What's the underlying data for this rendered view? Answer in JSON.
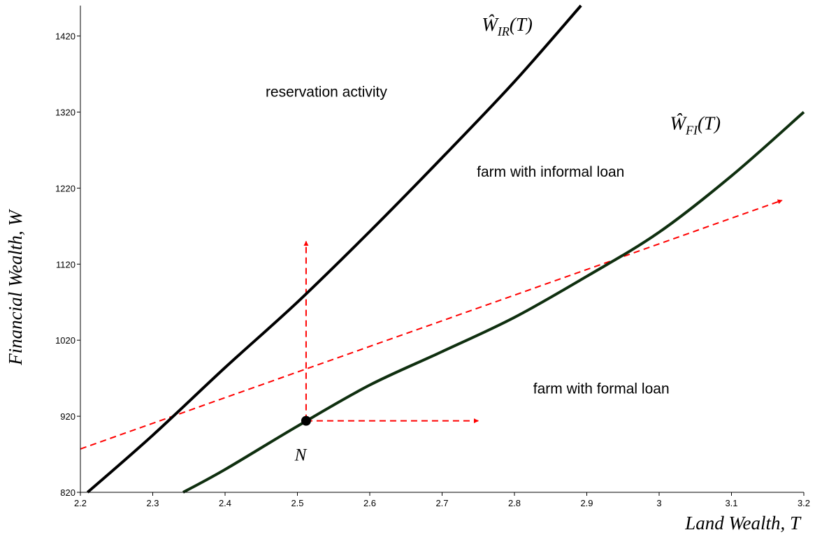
{
  "chart_data": {
    "type": "line",
    "title": "",
    "xlabel": "Land Wealth, T",
    "ylabel": "Financial Wealth, W",
    "xlim": [
      2.2,
      3.2
    ],
    "ylim": [
      820,
      1460
    ],
    "x_ticks": [
      "2.2",
      "2.3",
      "2.4",
      "2.5",
      "2.6",
      "2.7",
      "2.8",
      "2.9",
      "3",
      "3.1",
      "3.2"
    ],
    "y_ticks": [
      "820",
      "920",
      "1020",
      "1120",
      "1220",
      "1320",
      "1420"
    ],
    "grid": false,
    "series": [
      {
        "name": "Ŵ_IR(T)",
        "label_main": "Ŵ",
        "label_sub": "IR",
        "label_suffix": "(T)",
        "color": "#000000",
        "x": [
          2.21,
          2.3,
          2.4,
          2.5,
          2.6,
          2.7,
          2.8,
          2.892
        ],
        "y": [
          820,
          895,
          984,
          1070,
          1163,
          1260,
          1360,
          1460
        ]
      },
      {
        "name": "Ŵ_FI(T)",
        "label_main": "Ŵ",
        "label_sub": "FI",
        "label_suffix": "(T)",
        "color": "#0f2f0f",
        "x": [
          2.342,
          2.4,
          2.5,
          2.6,
          2.7,
          2.8,
          2.9,
          3.0,
          3.1,
          3.2
        ],
        "y": [
          820,
          850,
          907,
          961,
          1005,
          1050,
          1104,
          1162,
          1236,
          1320
        ]
      }
    ],
    "annotations": [
      {
        "text": "reservation activity",
        "x": 2.54,
        "y": 1340
      },
      {
        "text": "farm with informal loan",
        "x": 2.85,
        "y": 1235
      },
      {
        "text": "farm with formal loan",
        "x": 2.92,
        "y": 950
      }
    ],
    "point": {
      "label": "N",
      "x": 2.512,
      "y": 914,
      "color": "#000000"
    },
    "arrows": [
      {
        "color": "#ff0000",
        "x1": 2.2,
        "y1": 877,
        "x2": 3.17,
        "y2": 1204
      },
      {
        "color": "#ff0000",
        "x1": 2.512,
        "y1": 914,
        "x2": 2.512,
        "y2": 1150
      },
      {
        "color": "#ff0000",
        "x1": 2.512,
        "y1": 914,
        "x2": 2.75,
        "y2": 914
      }
    ]
  }
}
